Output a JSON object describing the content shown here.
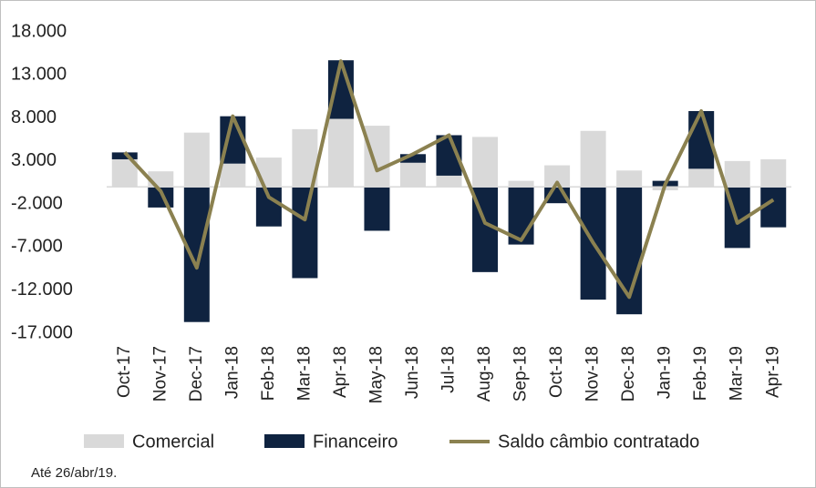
{
  "chart_data": {
    "type": "bar",
    "categories": [
      "Oct-17",
      "Nov-17",
      "Dec-17",
      "Jan-18",
      "Feb-18",
      "Mar-18",
      "Apr-18",
      "May-18",
      "Jun-18",
      "Jul-18",
      "Aug-18",
      "Sep-18",
      "Oct-18",
      "Nov-18",
      "Dec-18",
      "Jan-19",
      "Feb-19",
      "Mar-19",
      "Apr-19"
    ],
    "series": [
      {
        "name": "Comercial",
        "color": "#d9d9d9",
        "values": [
          3200,
          1800,
          6300,
          2700,
          3400,
          6700,
          7900,
          7100,
          2800,
          1300,
          5800,
          700,
          2500,
          6500,
          1900,
          -400,
          2100,
          3000,
          3200
        ]
      },
      {
        "name": "Financeiro",
        "color": "#0f2340",
        "values": [
          800,
          -2400,
          -15700,
          5500,
          -4600,
          -10600,
          6800,
          -5100,
          1000,
          4700,
          -9900,
          -6700,
          -1900,
          -13100,
          -14800,
          700,
          6700,
          -7100,
          -4700
        ]
      },
      {
        "name": "Saldo câmbio contratado",
        "type": "line",
        "color": "#8b8150",
        "values": [
          4000,
          -500,
          -9400,
          8200,
          -1200,
          -3800,
          14600,
          1900,
          3800,
          6000,
          -4200,
          -6200,
          500,
          -6500,
          -12800,
          300,
          8800,
          -4200,
          -1500
        ]
      }
    ],
    "ylim": [
      -17000,
      18000
    ],
    "yticks": [
      {
        "value": 18000,
        "label": "18.000"
      },
      {
        "value": 13000,
        "label": "13.000"
      },
      {
        "value": 8000,
        "label": "8.000"
      },
      {
        "value": 3000,
        "label": "3.000"
      },
      {
        "value": -2000,
        "label": "-2.000"
      },
      {
        "value": -7000,
        "label": "-7.000"
      },
      {
        "value": -12000,
        "label": "-12.000"
      },
      {
        "value": -17000,
        "label": "-17.000"
      }
    ],
    "footnote": "Até 26/abr/19."
  }
}
